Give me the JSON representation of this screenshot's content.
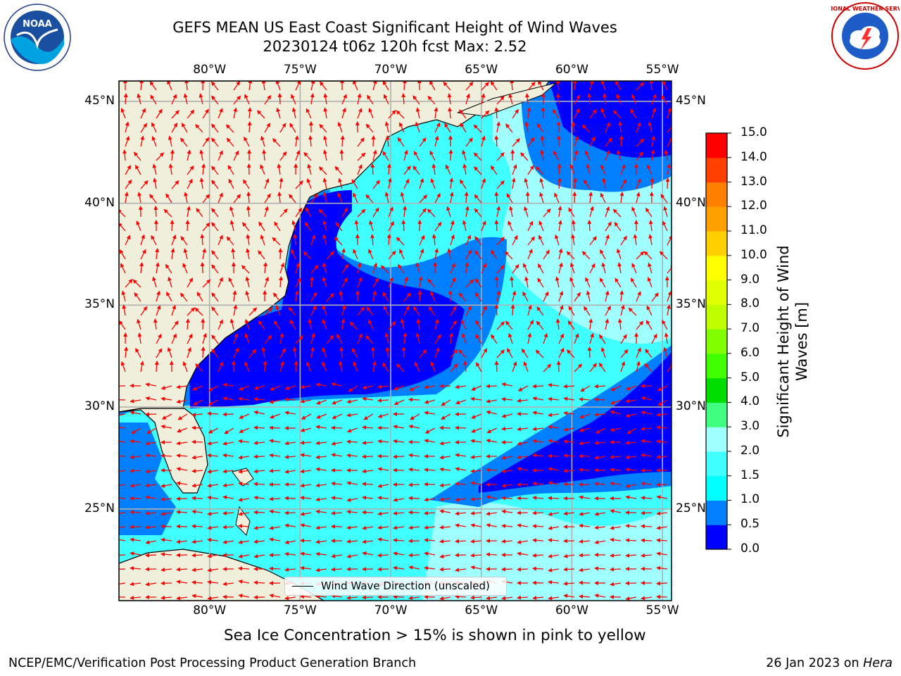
{
  "header": {
    "title_line1": "GEFS MEAN US East Coast Significant Height of Wind Waves",
    "title_line2": "20230124 t06z 120h fcst   Max: 2.52"
  },
  "logos": {
    "left": {
      "name": "noaa-logo",
      "text": "NOAA",
      "ring_text": "NATIONAL OCEANIC AND ATMOSPHERIC ADMINISTRATION · U.S. DEPARTMENT OF COMMERCE"
    },
    "right": {
      "name": "nws-logo",
      "ring_text": "NATIONAL WEATHER SERVICE"
    }
  },
  "map": {
    "lon_labels": [
      "80°W",
      "75°W",
      "70°W",
      "65°W",
      "60°W",
      "55°W"
    ],
    "lat_labels": [
      "45°N",
      "40°N",
      "35°N",
      "30°N",
      "25°N"
    ],
    "lon_range": [
      -85,
      -54.5
    ],
    "lat_range": [
      20.5,
      46
    ],
    "land_color": "#efefdb",
    "arrow_color": "#ff0000",
    "legend_label": "Wind Wave Direction (unscaled)"
  },
  "colorbar": {
    "title": "Significant Height of Wind Waves [m]",
    "levels": [
      "0.0",
      "0.5",
      "1.0",
      "1.5",
      "2.0",
      "3.0",
      "4.0",
      "5.0",
      "6.0",
      "7.0",
      "8.0",
      "9.0",
      "10.0",
      "11.0",
      "12.0",
      "13.0",
      "14.0",
      "15.0"
    ],
    "colors": [
      "#0000ff",
      "#0080ff",
      "#00ffff",
      "#40ffff",
      "#a0ffff",
      "#40ff80",
      "#00dd00",
      "#40ff00",
      "#80ff00",
      "#c0ff00",
      "#e0ff00",
      "#ffff00",
      "#ffd000",
      "#ffa000",
      "#ff8000",
      "#ff4000",
      "#ff0000"
    ]
  },
  "notes": {
    "sea_ice": "Sea Ice Concentration > 15% is shown in pink to yellow"
  },
  "footer": {
    "left": "NCEP/EMC/Verification Post Processing Product Generation Branch",
    "right_date": "26 Jan 2023 on ",
    "right_host": "Hera"
  }
}
